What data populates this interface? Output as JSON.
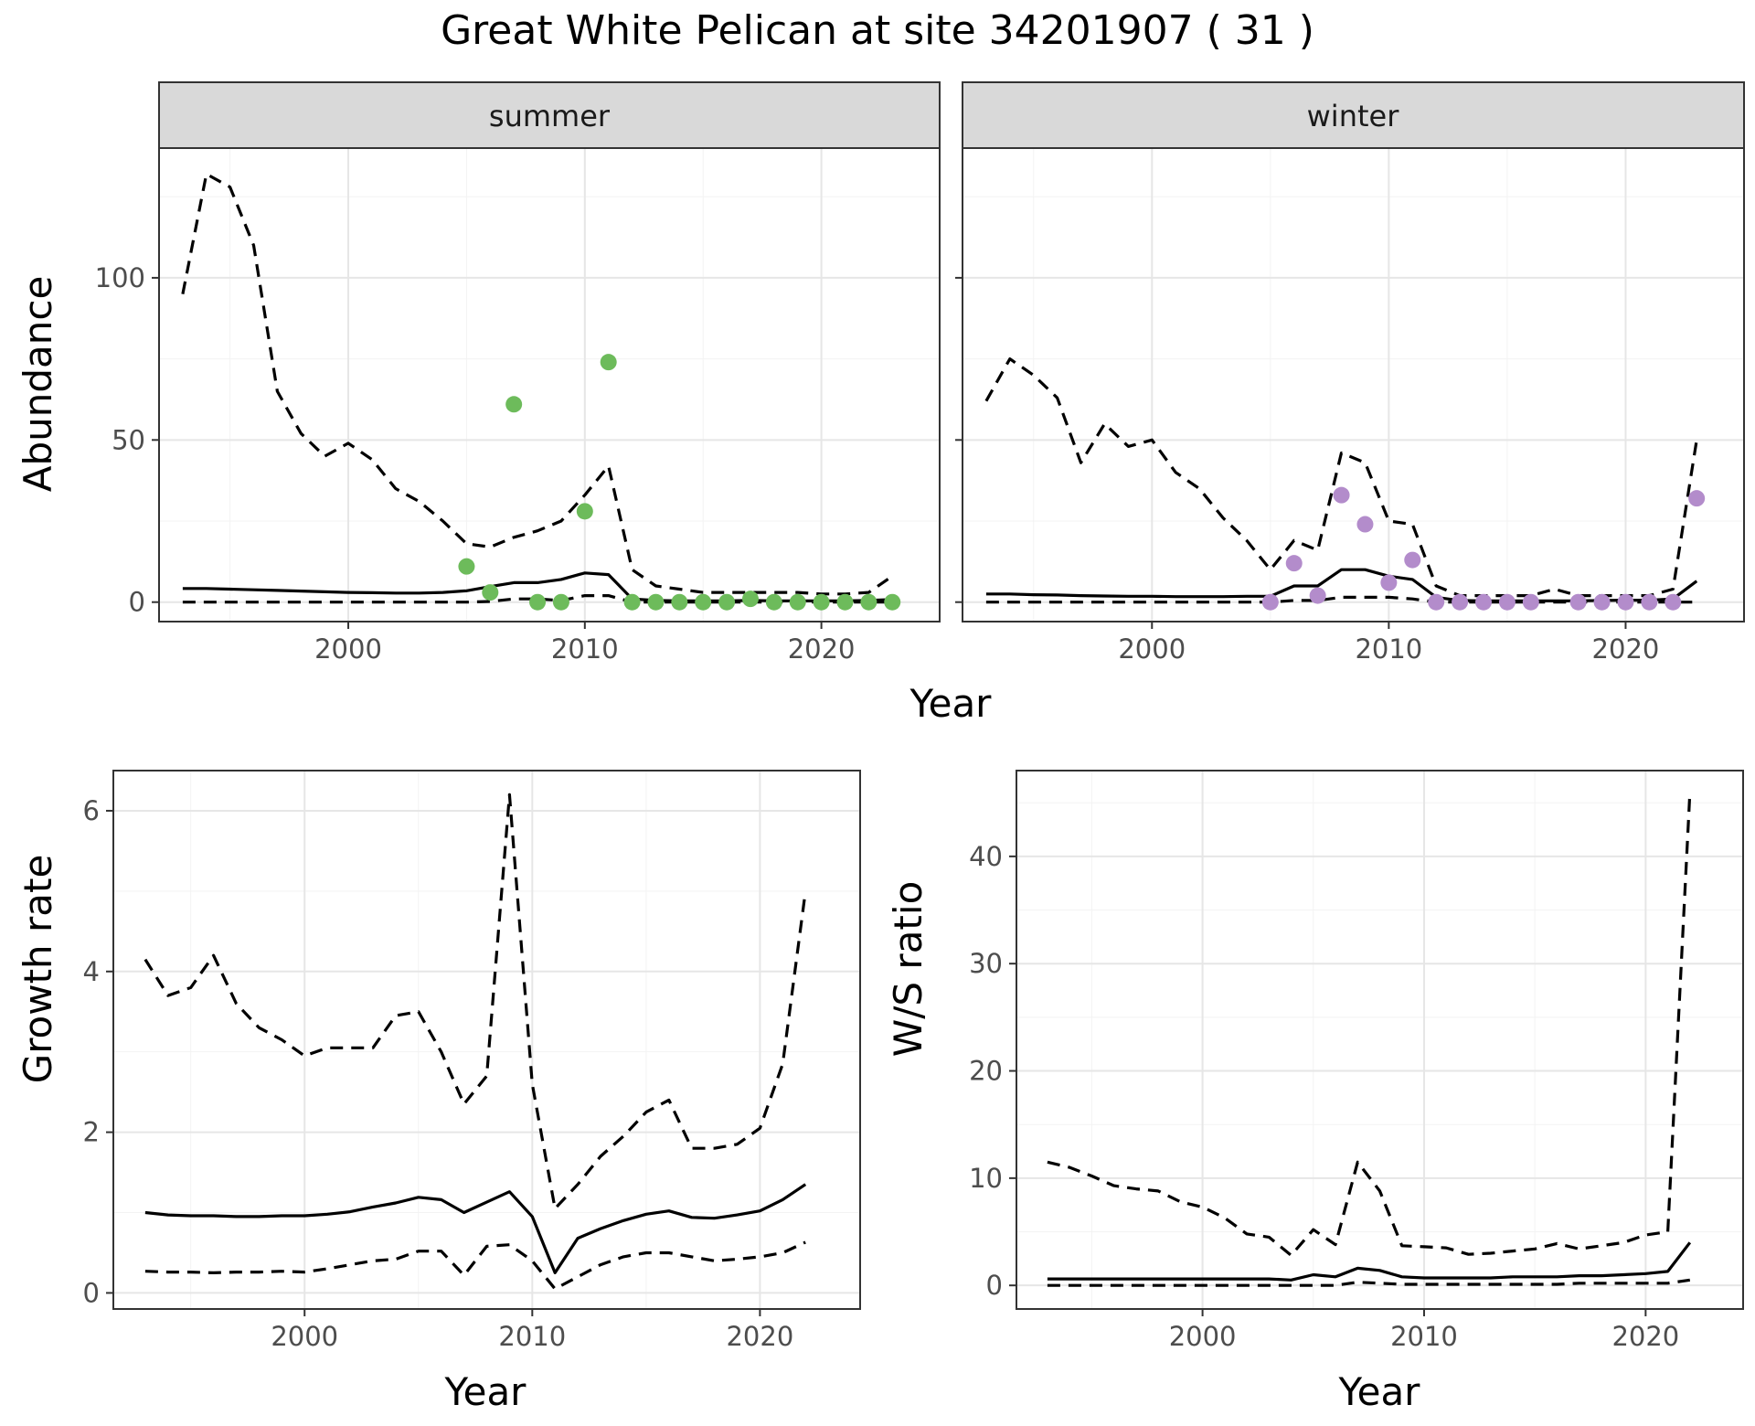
{
  "title": "Great White Pelican at site 34201907 ( 31 )",
  "colors": {
    "summer_points": "#6dbb5b",
    "winter_points": "#b38ccb",
    "lines": "#000000",
    "strip": "#d9d9d9"
  },
  "chart_data": [
    {
      "type": "line",
      "panel": "summer",
      "strip_label": "summer",
      "xlabel": "Year",
      "ylabel": "Abundance",
      "xlim": [
        1992,
        2025
      ],
      "ylim": [
        -6,
        140
      ],
      "xticks": [
        2000,
        2010,
        2020
      ],
      "yticks": [
        0,
        50,
        100
      ],
      "grid": true,
      "x": [
        1993,
        1994,
        1995,
        1996,
        1997,
        1998,
        1999,
        2000,
        2001,
        2002,
        2003,
        2004,
        2005,
        2006,
        2007,
        2008,
        2009,
        2010,
        2011,
        2012,
        2013,
        2014,
        2015,
        2016,
        2017,
        2018,
        2019,
        2020,
        2021,
        2022,
        2023
      ],
      "series": [
        {
          "role": "mean",
          "style": "solid",
          "values": [
            4.2,
            4.2,
            4.0,
            3.8,
            3.6,
            3.4,
            3.2,
            3.0,
            2.9,
            2.8,
            2.8,
            3.0,
            3.5,
            4.8,
            6.0,
            6.0,
            7.0,
            9.0,
            8.5,
            1.0,
            0.5,
            0.4,
            0.4,
            0.4,
            0.5,
            0.4,
            0.4,
            0.4,
            0.4,
            0.5,
            0.8
          ]
        },
        {
          "role": "upper",
          "style": "dashed",
          "values": [
            95,
            132,
            128,
            110,
            65,
            52,
            45,
            49,
            44,
            35,
            31,
            25,
            18,
            17,
            20,
            22,
            25,
            33,
            42,
            10,
            5,
            4,
            3,
            3,
            3,
            3,
            3,
            2.5,
            2.5,
            3,
            8
          ]
        },
        {
          "role": "lower",
          "style": "dashed",
          "values": [
            0,
            0,
            0,
            0,
            0,
            0,
            0,
            0,
            0,
            0,
            0,
            0,
            0,
            0.2,
            1.0,
            1.0,
            0.5,
            2.0,
            2.0,
            0,
            0,
            0,
            0,
            0,
            0,
            0,
            0,
            0,
            0,
            0,
            0
          ]
        }
      ],
      "points": {
        "x": [
          2005,
          2006,
          2007,
          2008,
          2009,
          2010,
          2011,
          2012,
          2013,
          2014,
          2015,
          2016,
          2017,
          2018,
          2019,
          2020,
          2021,
          2022,
          2023
        ],
        "y": [
          11,
          3,
          61,
          0,
          0,
          28,
          74,
          0,
          0,
          0,
          0,
          0,
          1,
          0,
          0,
          0,
          0,
          0,
          0
        ]
      }
    },
    {
      "type": "line",
      "panel": "winter",
      "strip_label": "winter",
      "xlabel": "Year",
      "ylabel": "Abundance",
      "xlim": [
        1992,
        2025
      ],
      "ylim": [
        -6,
        140
      ],
      "xticks": [
        2000,
        2010,
        2020
      ],
      "yticks": [
        0,
        50,
        100
      ],
      "grid": true,
      "x": [
        1993,
        1994,
        1995,
        1996,
        1997,
        1998,
        1999,
        2000,
        2001,
        2002,
        2003,
        2004,
        2005,
        2006,
        2007,
        2008,
        2009,
        2010,
        2011,
        2012,
        2013,
        2014,
        2015,
        2016,
        2017,
        2018,
        2019,
        2020,
        2021,
        2022,
        2023
      ],
      "series": [
        {
          "role": "mean",
          "style": "solid",
          "values": [
            2.5,
            2.5,
            2.3,
            2.2,
            2.0,
            1.9,
            1.8,
            1.8,
            1.7,
            1.7,
            1.7,
            1.8,
            1.8,
            5.0,
            5.0,
            10.0,
            10.0,
            8.0,
            7.0,
            1.5,
            0.5,
            0.4,
            0.4,
            0.4,
            0.4,
            0.4,
            0.5,
            0.6,
            0.6,
            1.0,
            6.5
          ]
        },
        {
          "role": "upper",
          "style": "dashed",
          "values": [
            62,
            75,
            70,
            63,
            43,
            55,
            48,
            50,
            40,
            35,
            26,
            19,
            10,
            19,
            16,
            46,
            43,
            25,
            24,
            5,
            2,
            2,
            2,
            2,
            4,
            2,
            2,
            2,
            2,
            4,
            50
          ]
        },
        {
          "role": "lower",
          "style": "dashed",
          "values": [
            0,
            0,
            0,
            0,
            0,
            0,
            0,
            0,
            0,
            0,
            0,
            0,
            0,
            0.5,
            0.5,
            1.5,
            1.5,
            1.5,
            1.0,
            0,
            0,
            0,
            0,
            0,
            0,
            0,
            0,
            0,
            0,
            0,
            0
          ]
        }
      ],
      "points": {
        "x": [
          2005,
          2006,
          2007,
          2008,
          2009,
          2010,
          2011,
          2012,
          2013,
          2014,
          2015,
          2016,
          2018,
          2019,
          2020,
          2021,
          2022,
          2023
        ],
        "y": [
          0,
          12,
          2,
          33,
          24,
          6,
          13,
          0,
          0,
          0,
          0,
          0,
          0,
          0,
          0,
          0,
          0,
          32
        ]
      }
    },
    {
      "type": "line",
      "panel": "growth",
      "xlabel": "Year",
      "ylabel": "Growth rate",
      "xlim": [
        1991.6,
        2024.4
      ],
      "ylim": [
        -0.2,
        6.5
      ],
      "xticks": [
        2000,
        2010,
        2020
      ],
      "yticks": [
        0,
        2,
        4,
        6
      ],
      "grid": true,
      "x": [
        1993,
        1994,
        1995,
        1996,
        1997,
        1998,
        1999,
        2000,
        2001,
        2002,
        2003,
        2004,
        2005,
        2006,
        2007,
        2008,
        2009,
        2010,
        2011,
        2012,
        2013,
        2014,
        2015,
        2016,
        2017,
        2018,
        2019,
        2020,
        2021,
        2022
      ],
      "series": [
        {
          "role": "mean",
          "style": "solid",
          "values": [
            1.0,
            0.97,
            0.96,
            0.96,
            0.95,
            0.95,
            0.96,
            0.96,
            0.98,
            1.01,
            1.07,
            1.12,
            1.19,
            1.16,
            1.0,
            1.13,
            1.26,
            0.95,
            0.25,
            0.68,
            0.8,
            0.9,
            0.98,
            1.02,
            0.94,
            0.93,
            0.97,
            1.02,
            1.16,
            1.35
          ]
        },
        {
          "role": "upper",
          "style": "dashed",
          "values": [
            4.15,
            3.7,
            3.8,
            4.2,
            3.6,
            3.3,
            3.15,
            2.95,
            3.05,
            3.05,
            3.05,
            3.45,
            3.5,
            3.0,
            2.35,
            2.7,
            6.2,
            2.6,
            1.05,
            1.35,
            1.7,
            1.95,
            2.25,
            2.4,
            1.8,
            1.8,
            1.85,
            2.05,
            2.85,
            5.0
          ]
        },
        {
          "role": "lower",
          "style": "dashed",
          "values": [
            0.27,
            0.26,
            0.26,
            0.25,
            0.26,
            0.26,
            0.27,
            0.26,
            0.3,
            0.35,
            0.4,
            0.42,
            0.52,
            0.52,
            0.22,
            0.58,
            0.6,
            0.4,
            0.05,
            0.2,
            0.35,
            0.45,
            0.5,
            0.5,
            0.45,
            0.4,
            0.42,
            0.45,
            0.5,
            0.63
          ]
        }
      ]
    },
    {
      "type": "line",
      "panel": "ratio",
      "xlabel": "Year",
      "ylabel": "W/S ratio",
      "xlim": [
        1991.6,
        2024.4
      ],
      "ylim": [
        -2.2,
        48
      ],
      "xticks": [
        2000,
        2010,
        2020
      ],
      "yticks": [
        0,
        10,
        20,
        30,
        40
      ],
      "grid": true,
      "x": [
        1993,
        1994,
        1995,
        1996,
        1997,
        1998,
        1999,
        2000,
        2001,
        2002,
        2003,
        2004,
        2005,
        2006,
        2007,
        2008,
        2009,
        2010,
        2011,
        2012,
        2013,
        2014,
        2015,
        2016,
        2017,
        2018,
        2019,
        2020,
        2021,
        2022
      ],
      "series": [
        {
          "role": "mean",
          "style": "solid",
          "values": [
            0.6,
            0.6,
            0.6,
            0.6,
            0.6,
            0.6,
            0.6,
            0.6,
            0.6,
            0.6,
            0.6,
            0.5,
            1.0,
            0.8,
            1.6,
            1.4,
            0.8,
            0.7,
            0.7,
            0.7,
            0.7,
            0.8,
            0.8,
            0.8,
            0.9,
            0.9,
            1.0,
            1.1,
            1.3,
            4.0
          ]
        },
        {
          "role": "upper",
          "style": "dashed",
          "values": [
            11.5,
            11.0,
            10.2,
            9.3,
            9.0,
            8.8,
            7.8,
            7.3,
            6.3,
            4.8,
            4.5,
            2.8,
            5.2,
            3.8,
            11.5,
            8.8,
            3.7,
            3.6,
            3.5,
            2.9,
            3.0,
            3.2,
            3.4,
            3.9,
            3.4,
            3.7,
            4.0,
            4.7,
            5.0,
            46.0
          ]
        },
        {
          "role": "lower",
          "style": "dashed",
          "values": [
            0,
            0,
            0,
            0,
            0,
            0,
            0,
            0,
            0,
            0,
            0,
            0,
            0,
            0,
            0.3,
            0.2,
            0.1,
            0.1,
            0.1,
            0.1,
            0.1,
            0.1,
            0.1,
            0.1,
            0.2,
            0.2,
            0.2,
            0.2,
            0.2,
            0.5
          ]
        }
      ]
    }
  ]
}
